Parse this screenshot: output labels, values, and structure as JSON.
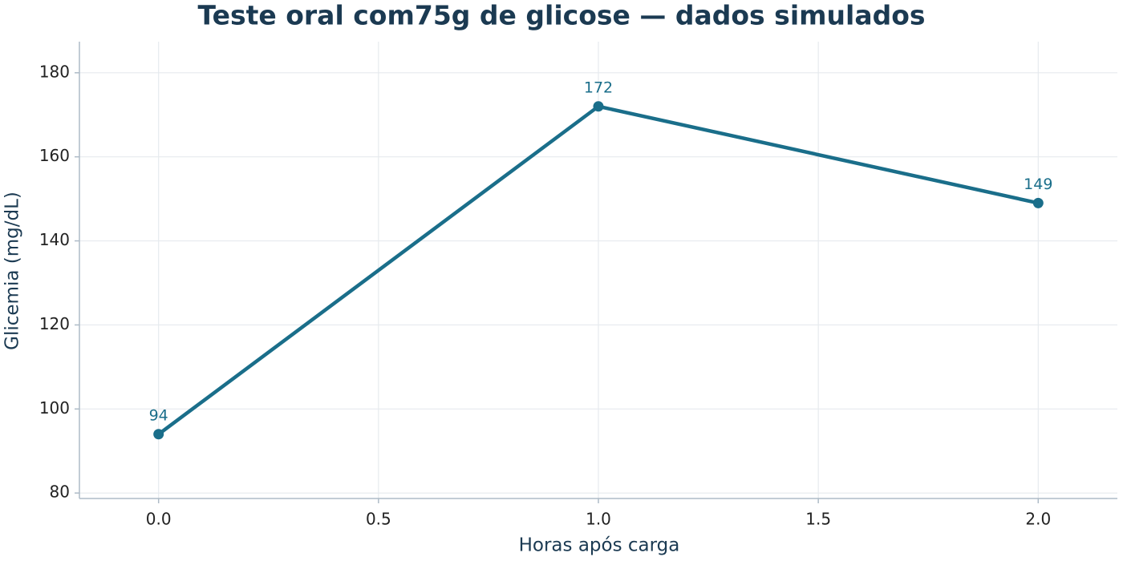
{
  "chart_data": {
    "type": "line",
    "title": "Teste oral com75g de glicose — dados simulados",
    "x_label": "Horas após carga",
    "y_label": "Glicemia (mg/dL)",
    "x": [
      0,
      1,
      2
    ],
    "series": [
      {
        "name": "Glicemia",
        "color": "#1a6e8a",
        "values": [
          94,
          172,
          149
        ]
      }
    ],
    "xlim": [
      -0.18,
      2.18
    ],
    "ylim": [
      78.7,
      187.4
    ],
    "xticks": [
      {
        "value": 0,
        "label": "0.0"
      },
      {
        "value": 0.5,
        "label": "0.5"
      },
      {
        "value": 1,
        "label": "1.0"
      },
      {
        "value": 1.5,
        "label": "1.5"
      },
      {
        "value": 2,
        "label": "2.0"
      }
    ],
    "yticks": [
      80,
      100,
      120,
      140,
      160,
      180
    ],
    "grid": true
  }
}
